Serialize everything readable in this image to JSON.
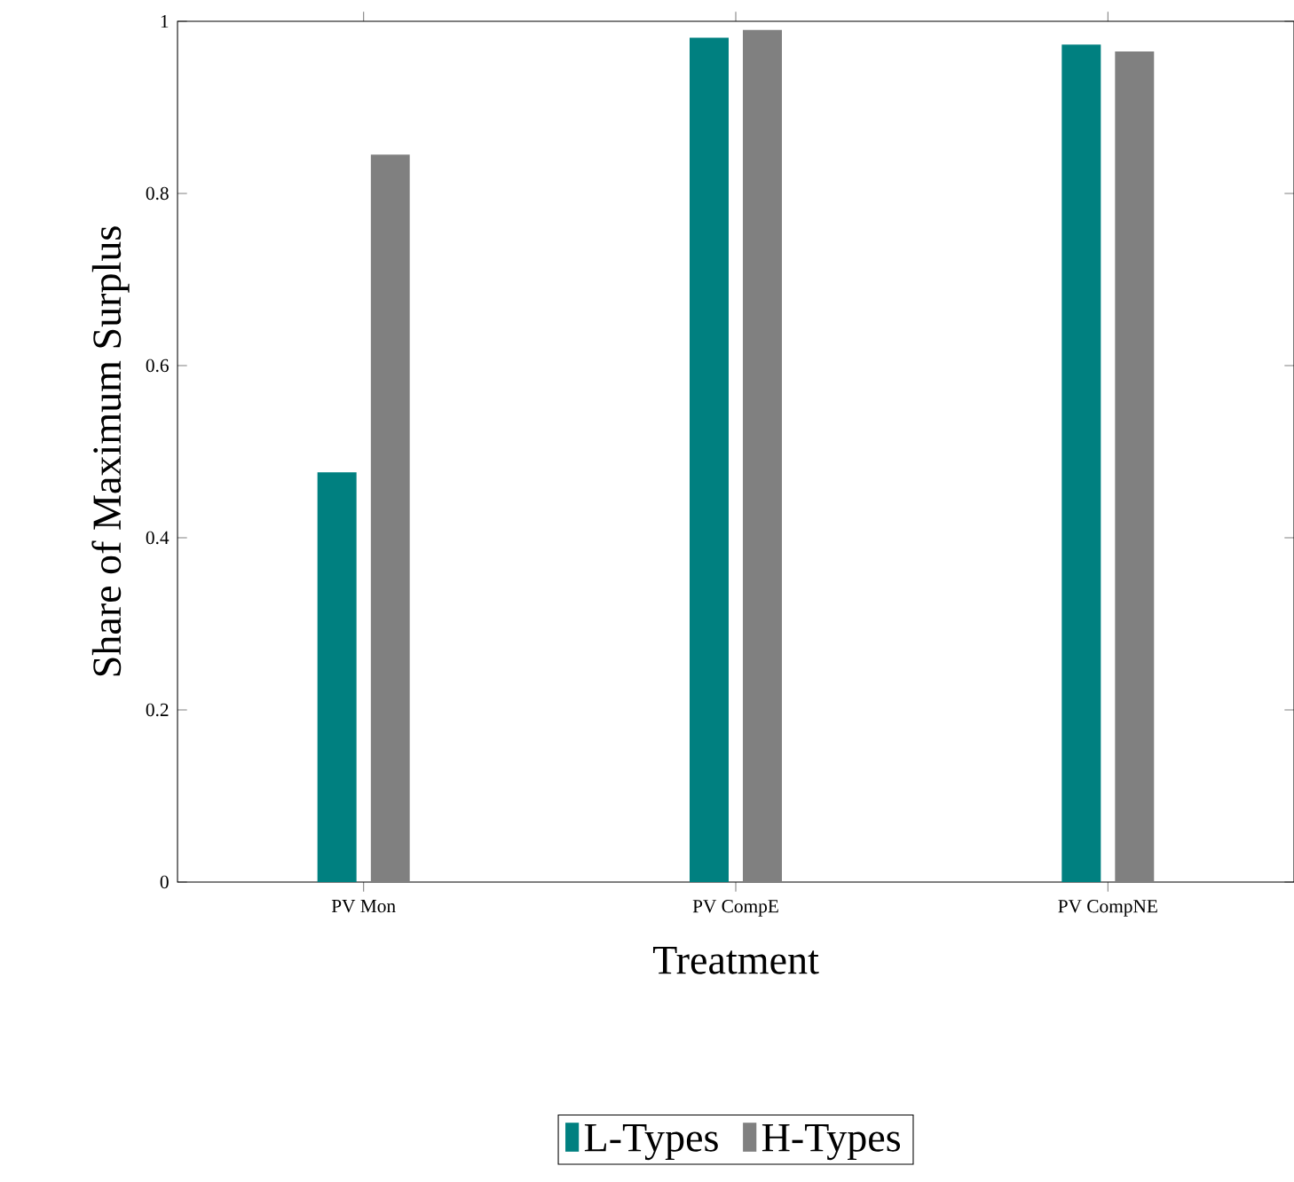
{
  "chart_data": {
    "type": "bar",
    "xlabel": "Treatment",
    "ylabel": "Share of Maximum Surplus",
    "categories": [
      "PV Mon",
      "PV CompE",
      "PV CompNE"
    ],
    "series": [
      {
        "name": "L-Types",
        "color": "#008080",
        "values": [
          0.476,
          0.981,
          0.973
        ]
      },
      {
        "name": "H-Types",
        "color": "#808080",
        "values": [
          0.845,
          0.99,
          0.965
        ]
      }
    ],
    "ylim": [
      0,
      1
    ],
    "yticks": [
      0,
      0.2,
      0.4,
      0.6,
      0.8,
      1
    ],
    "grid": false,
    "legend": "bottom"
  }
}
